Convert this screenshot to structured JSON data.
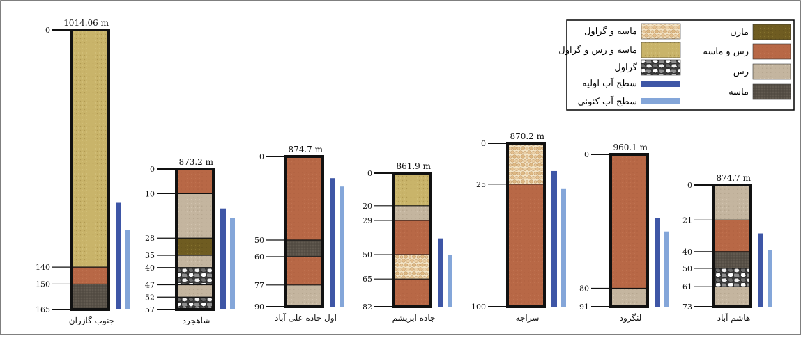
{
  "figure": {
    "title": ""
  },
  "legend": {
    "items": [
      {
        "key": "gravel_sand",
        "label": "ماسه و گراول"
      },
      {
        "key": "sand_clay_gravel",
        "label": "ماسه و رس و گراول"
      },
      {
        "key": "gravel",
        "label": "گراول"
      },
      {
        "key": "initial_water",
        "label": "سطح آب اولیه"
      },
      {
        "key": "current_water",
        "label": "سطح آب کنونی"
      },
      {
        "key": "marl",
        "label": "مارن"
      },
      {
        "key": "clay_sand",
        "label": "رس و ماسه"
      },
      {
        "key": "clay",
        "label": "رس"
      },
      {
        "key": "sand",
        "label": "ماسه"
      }
    ]
  },
  "colors": {
    "sand_clay_gravel": "#c9b46a",
    "clay_sand": "#b86846",
    "clay": "#c4b59f",
    "sand": "#575047",
    "marl": "#6f5c21",
    "gravel_sand": "#e7cda4",
    "gravel": "#4a4a4a",
    "initial_water": "#3e56a6",
    "current_water": "#84a6d9"
  },
  "chart_data": {
    "type": "stratigraphic-columns",
    "columns": [
      {
        "name": "جنوب گازران",
        "elevation": "1014.06 m",
        "total": 165,
        "layers": [
          {
            "from": 0,
            "to": 140,
            "type": "sand_clay_gravel"
          },
          {
            "from": 140,
            "to": 150,
            "type": "clay_sand"
          },
          {
            "from": 150,
            "to": 165,
            "type": "sand"
          }
        ],
        "ticks": [
          "0",
          "140",
          "150",
          "165"
        ],
        "initial_water": 102,
        "current_water": 118
      },
      {
        "name": "شاهجرد",
        "elevation": "873.2 m",
        "total": 57,
        "layers": [
          {
            "from": 0,
            "to": 10,
            "type": "clay_sand"
          },
          {
            "from": 10,
            "to": 28,
            "type": "clay"
          },
          {
            "from": 28,
            "to": 35,
            "type": "marl"
          },
          {
            "from": 35,
            "to": 40,
            "type": "clay"
          },
          {
            "from": 40,
            "to": 47,
            "type": "gravel"
          },
          {
            "from": 47,
            "to": 52,
            "type": "clay"
          },
          {
            "from": 52,
            "to": 57,
            "type": "gravel"
          }
        ],
        "ticks": [
          "0",
          "10",
          "28",
          "35",
          "40",
          "47",
          "52",
          "57"
        ],
        "initial_water": 16,
        "current_water": 20
      },
      {
        "name": "اول جاده علی آباد",
        "elevation": "874.7 m",
        "total": 90,
        "layers": [
          {
            "from": 0,
            "to": 50,
            "type": "clay_sand"
          },
          {
            "from": 50,
            "to": 60,
            "type": "sand"
          },
          {
            "from": 60,
            "to": 77,
            "type": "clay_sand"
          },
          {
            "from": 77,
            "to": 90,
            "type": "clay"
          }
        ],
        "ticks": [
          "0",
          "50",
          "60",
          "77",
          "90"
        ],
        "initial_water": 13,
        "current_water": 18
      },
      {
        "name": "جاده ابریشم",
        "elevation": "861.9 m",
        "total": 82,
        "layers": [
          {
            "from": 0,
            "to": 20,
            "type": "sand_clay_gravel"
          },
          {
            "from": 20,
            "to": 29,
            "type": "clay"
          },
          {
            "from": 29,
            "to": 50,
            "type": "clay_sand"
          },
          {
            "from": 50,
            "to": 65,
            "type": "gravel_sand"
          },
          {
            "from": 65,
            "to": 82,
            "type": "clay_sand"
          }
        ],
        "ticks": [
          "0",
          "20",
          "29",
          "50",
          "65",
          "82"
        ],
        "initial_water": 40,
        "current_water": 50
      },
      {
        "name": "سراجه",
        "elevation": "870.2 m",
        "total": 100,
        "layers": [
          {
            "from": 0,
            "to": 25,
            "type": "gravel_sand"
          },
          {
            "from": 25,
            "to": 100,
            "type": "clay_sand"
          }
        ],
        "ticks": [
          "0",
          "25",
          "100"
        ],
        "initial_water": 17,
        "current_water": 28
      },
      {
        "name": "لنگرود",
        "elevation": "960.1 m",
        "total": 91,
        "layers": [
          {
            "from": 0,
            "to": 80,
            "type": "clay_sand"
          },
          {
            "from": 80,
            "to": 91,
            "type": "clay"
          }
        ],
        "ticks": [
          "0",
          "80",
          "91"
        ],
        "initial_water": 38,
        "current_water": 46
      },
      {
        "name": "هاشم آباد",
        "elevation": "874.7 m",
        "total": 73,
        "layers": [
          {
            "from": 0,
            "to": 21,
            "type": "clay"
          },
          {
            "from": 21,
            "to": 40,
            "type": "clay_sand"
          },
          {
            "from": 40,
            "to": 50,
            "type": "sand"
          },
          {
            "from": 50,
            "to": 61,
            "type": "gravel"
          },
          {
            "from": 61,
            "to": 73,
            "type": "clay"
          }
        ],
        "ticks": [
          "0",
          "21",
          "40",
          "50",
          "61",
          "73"
        ],
        "initial_water": 29,
        "current_water": 39
      }
    ]
  }
}
